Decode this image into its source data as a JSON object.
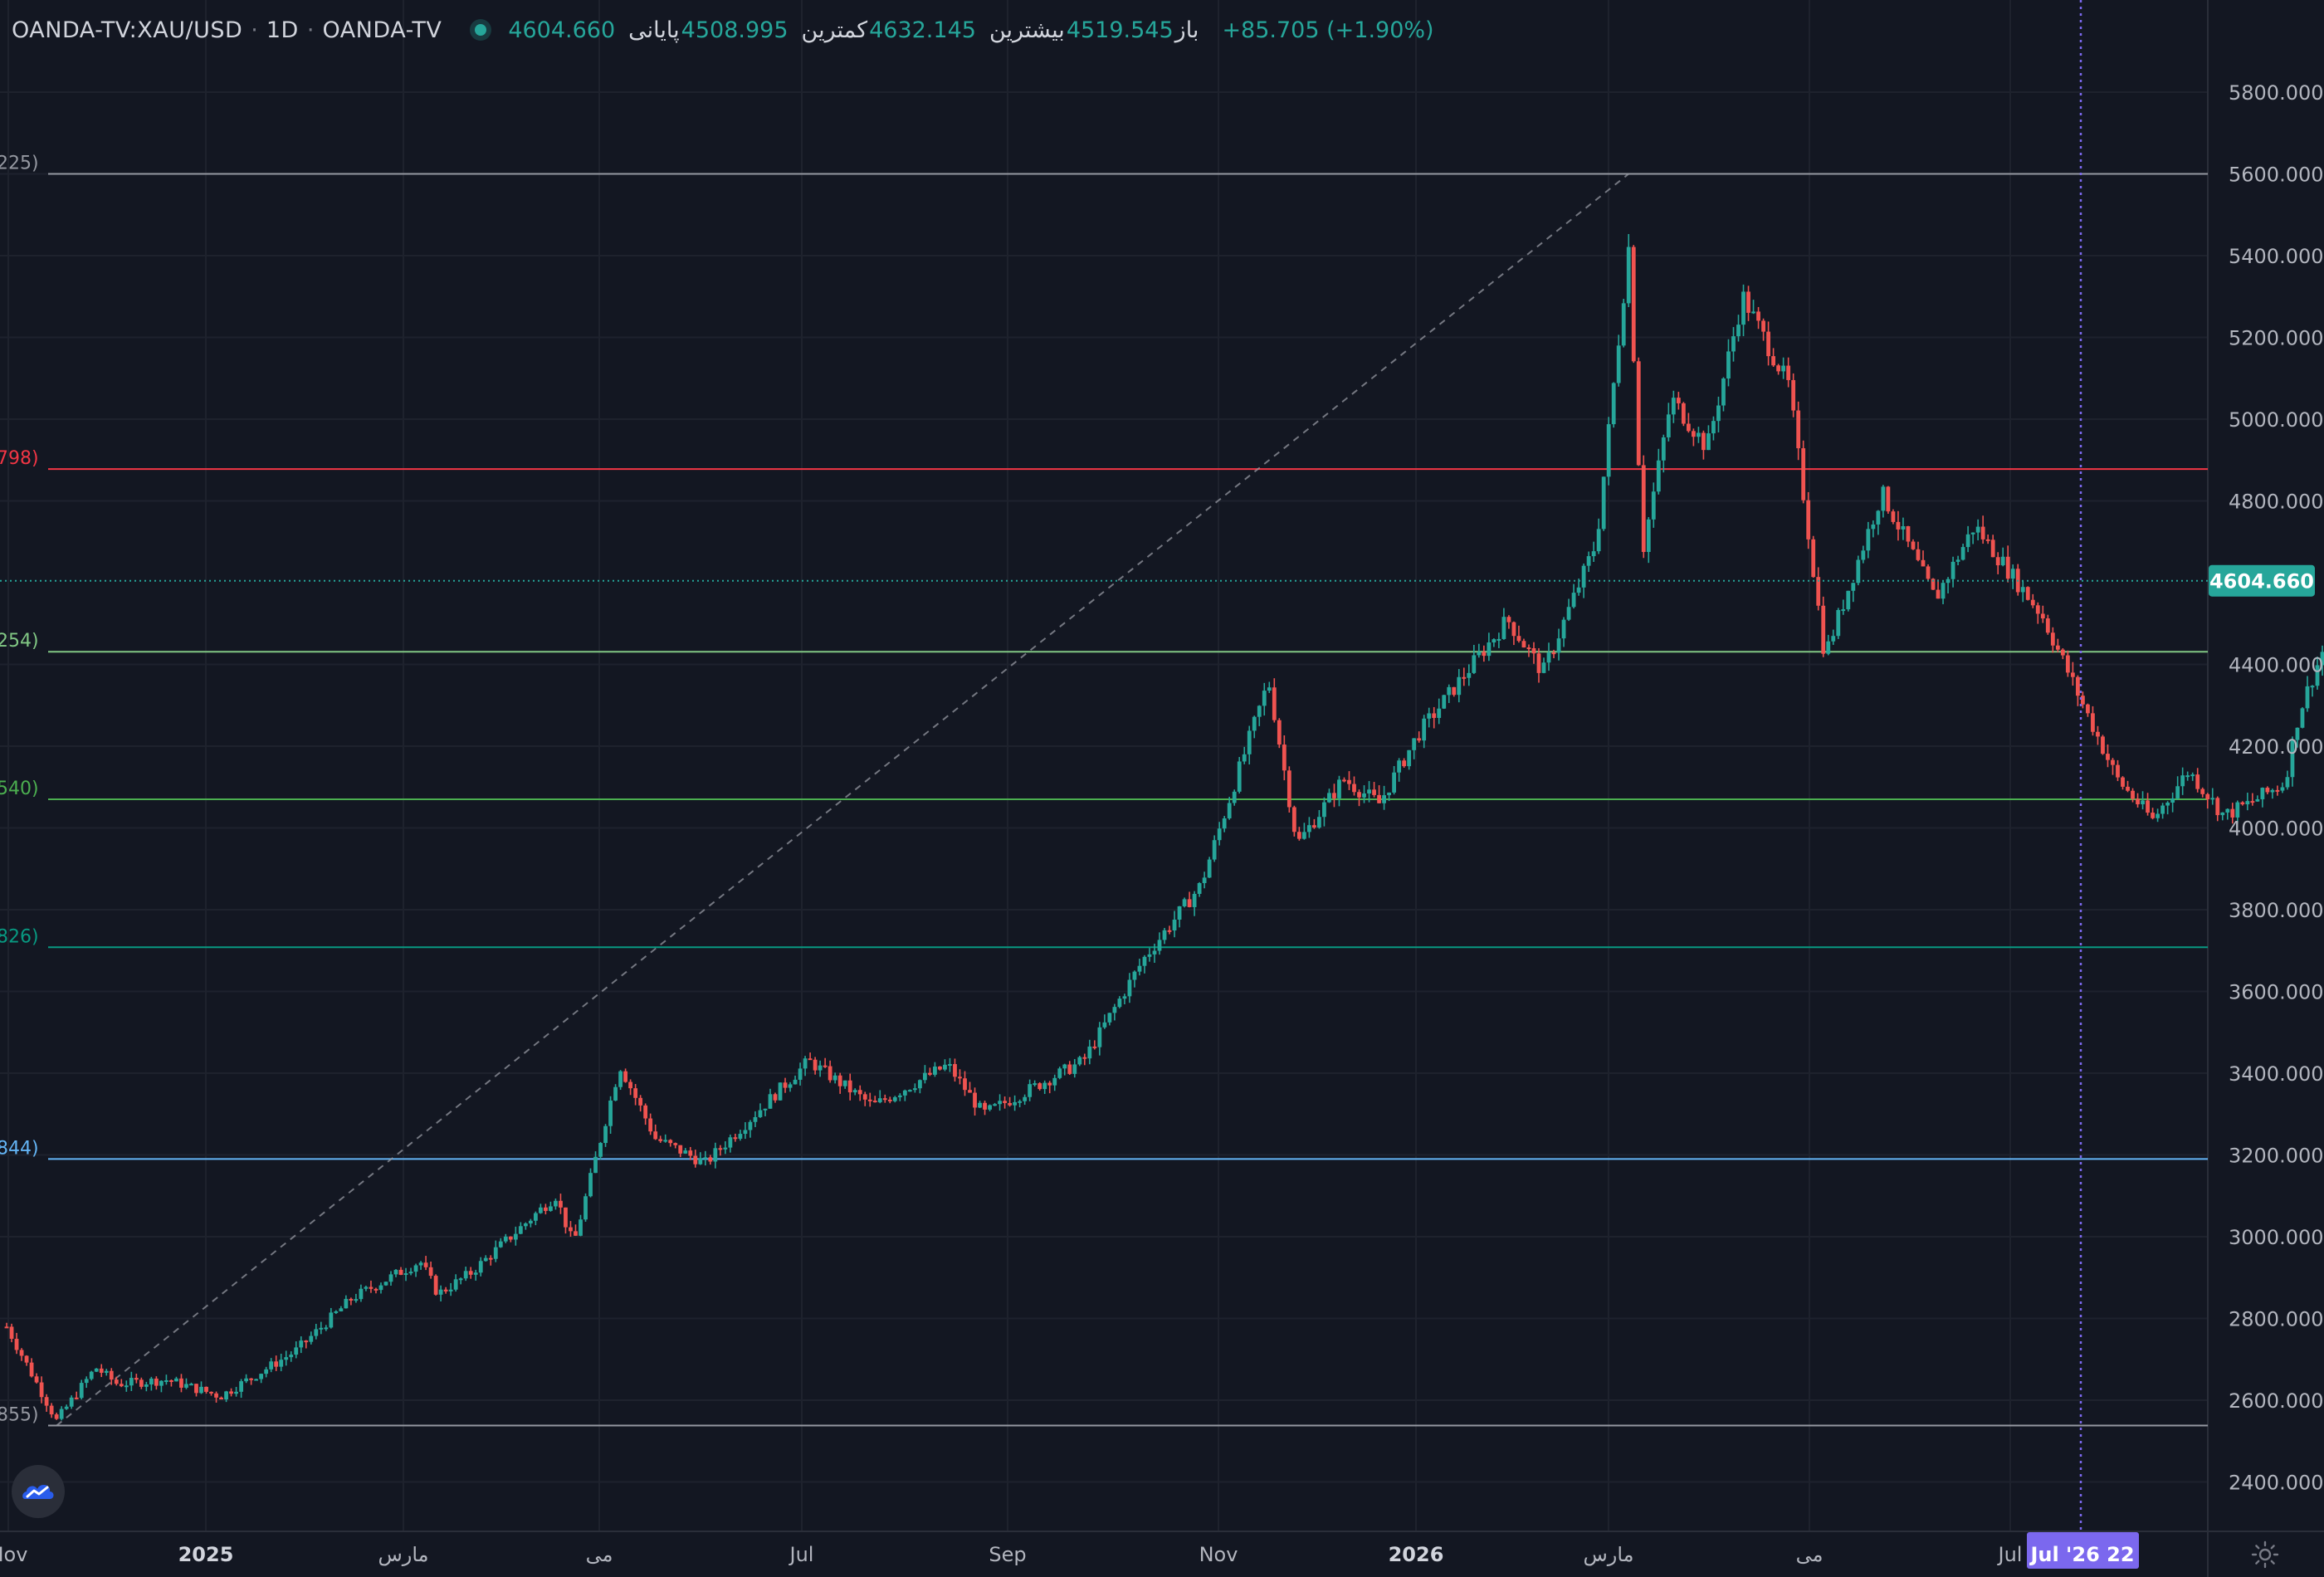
{
  "legend": {
    "symbol": "OANDA-TV:XAU/USD",
    "interval": "1D",
    "source": "OANDA-TV",
    "open_label": "باز",
    "open_value": "4519.545",
    "high_label": "بیشترین",
    "high_value": "4632.145",
    "low_label": "کمترین",
    "low_value": "4508.995",
    "close_label": "پایانی",
    "close_value": "4604.660",
    "change": "+85.705 (+1.90%)"
  },
  "colors": {
    "background": "#131722",
    "up": "#26a69a",
    "down": "#ef5350",
    "grid": "#1e222d",
    "text": "#b2b5be",
    "crosshair": "#7b68ee"
  },
  "chart_data": {
    "type": "candlestick",
    "y_axis_ticks": [
      "5800.000",
      "5600.000",
      "5400.000",
      "5200.000",
      "5000.000",
      "4800.000",
      "4400.000",
      "4200.000",
      "4000.000",
      "3800.000",
      "3600.000",
      "3400.000",
      "3200.000",
      "3000.000",
      "2800.000",
      "2600.000",
      "2400.000"
    ],
    "ylim": [
      2250,
      5930
    ],
    "x_axis_labels": [
      "Nov",
      "2025",
      "مارس",
      "می",
      "Jul",
      "Sep",
      "Nov",
      "2026",
      "مارس",
      "می",
      "Jul"
    ],
    "last_price_label": "4604.660",
    "crosshair_date_label": "Jul '26 22",
    "fib_levels": [
      {
        "label": "225)",
        "price": 5600,
        "color": "#9598a1"
      },
      {
        "label": "798)",
        "price": 4878,
        "color": "#f23645"
      },
      {
        "label": "254)",
        "price": 4431,
        "color": "#81c784"
      },
      {
        "label": "540)",
        "price": 4070,
        "color": "#4caf50"
      },
      {
        "label": "826)",
        "price": 3708,
        "color": "#089981"
      },
      {
        "label": "844)",
        "price": 3190,
        "color": "#64b5f6"
      },
      {
        "label": "855)",
        "price": 2538,
        "color": "#9598a1"
      }
    ],
    "trend_line": {
      "from_date": "2024-11-14",
      "from_price": 2538,
      "to_date": "2026-01-29",
      "to_price": 5600
    },
    "price_path": [
      [
        "2024-10-31",
        2780
      ],
      [
        "2024-11-14",
        2550
      ],
      [
        "2024-11-25",
        2680
      ],
      [
        "2024-12-01",
        2640
      ],
      [
        "2024-12-15",
        2650
      ],
      [
        "2024-12-30",
        2610
      ],
      [
        "2025-01-20",
        2720
      ],
      [
        "2025-02-05",
        2850
      ],
      [
        "2025-02-24",
        2940
      ],
      [
        "2025-03-01",
        2860
      ],
      [
        "2025-03-10",
        2910
      ],
      [
        "2025-04-03",
        3100
      ],
      [
        "2025-04-08",
        2980
      ],
      [
        "2025-04-21",
        3420
      ],
      [
        "2025-05-01",
        3240
      ],
      [
        "2025-05-15",
        3180
      ],
      [
        "2025-06-13",
        3430
      ],
      [
        "2025-07-01",
        3320
      ],
      [
        "2025-07-22",
        3420
      ],
      [
        "2025-08-01",
        3300
      ],
      [
        "2025-08-29",
        3430
      ],
      [
        "2025-09-15",
        3680
      ],
      [
        "2025-10-01",
        3860
      ],
      [
        "2025-10-20",
        4360
      ],
      [
        "2025-10-28",
        3960
      ],
      [
        "2025-11-10",
        4120
      ],
      [
        "2025-11-20",
        4060
      ],
      [
        "2025-12-01",
        4230
      ],
      [
        "2025-12-26",
        4510
      ],
      [
        "2026-01-05",
        4380
      ],
      [
        "2026-01-20",
        4700
      ],
      [
        "2026-01-29",
        5420
      ],
      [
        "2026-02-02",
        4680
      ],
      [
        "2026-02-10",
        5050
      ],
      [
        "2026-02-20",
        4930
      ],
      [
        "2026-03-02",
        5300
      ],
      [
        "2026-03-15",
        5080
      ],
      [
        "2026-03-25",
        4420
      ],
      [
        "2026-04-10",
        4820
      ],
      [
        "2026-04-25",
        4560
      ],
      [
        "2026-05-06",
        4740
      ],
      [
        "2026-05-25",
        4520
      ],
      [
        "2026-06-05",
        4310
      ],
      [
        "2026-06-15",
        4120
      ],
      [
        "2026-06-25",
        4020
      ],
      [
        "2026-07-05",
        4140
      ],
      [
        "2026-07-15",
        4030
      ],
      [
        "2026-07-22",
        4060
      ],
      [
        "2026-08-01",
        4110
      ],
      [
        "2026-08-05",
        4280
      ],
      [
        "2026-08-12",
        4440
      ],
      [
        "2026-08-16",
        4350
      ],
      [
        "2026-08-20",
        4604.66
      ]
    ]
  }
}
